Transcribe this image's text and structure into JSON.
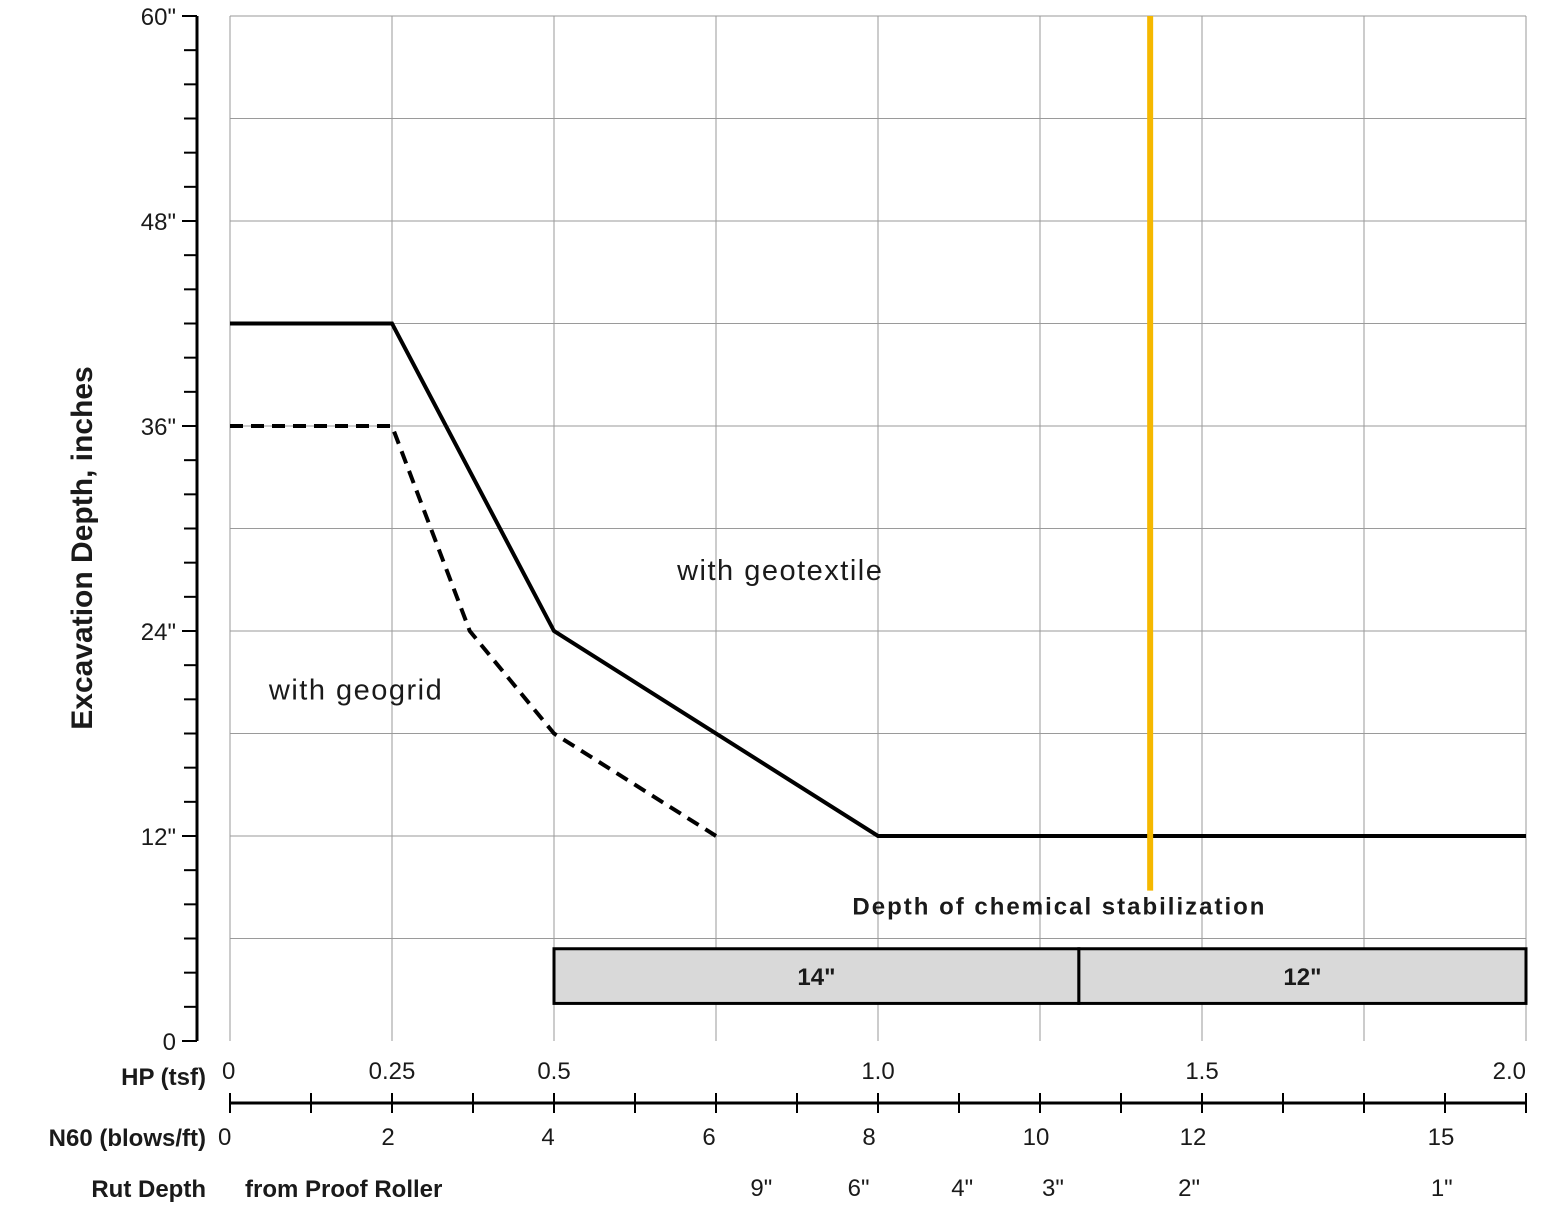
{
  "chart_data": {
    "type": "line",
    "ylabel": "Excavation Depth, inches",
    "y_tick_labels": [
      "0",
      "12\"",
      "24\"",
      "36\"",
      "48\"",
      "60\""
    ],
    "ylim": [
      0,
      60
    ],
    "grid": true,
    "x_axes": [
      {
        "title": "HP (tsf)",
        "ticks": [
          0,
          0.25,
          0.5,
          1.0,
          1.5,
          2.0
        ],
        "tick_labels": [
          "0",
          "0.25",
          "0.5",
          "1.0",
          "1.5",
          "2.0"
        ]
      },
      {
        "title": "N60 (blows/ft)",
        "ticks": [
          0,
          2,
          4,
          6,
          8,
          10,
          12,
          15
        ],
        "tick_labels": [
          "0",
          "2",
          "4",
          "6",
          "8",
          "10",
          "12",
          "15"
        ]
      },
      {
        "title": "Rut Depth",
        "subtitle": "from Proof Roller",
        "ticks": [
          0.82,
          0.97,
          1.13,
          1.27,
          1.48,
          1.87
        ],
        "tick_labels": [
          "9\"",
          "6\"",
          "4\"",
          "3\"",
          "2\"",
          "1\""
        ]
      }
    ],
    "xlim": [
      0,
      2.0
    ],
    "series": [
      {
        "name": "with geotextile",
        "style": "solid",
        "color": "#000000",
        "x": [
          0,
          0.25,
          0.5,
          1.0,
          2.0
        ],
        "y": [
          42,
          42,
          24,
          12,
          12
        ]
      },
      {
        "name": "with geogrid",
        "style": "dashed",
        "color": "#000000",
        "x": [
          0,
          0.25,
          0.37,
          0.5,
          0.75
        ],
        "y": [
          36,
          36,
          24,
          18,
          12
        ]
      }
    ],
    "reference_line": {
      "x": 1.42,
      "y_range": [
        8.8,
        60
      ],
      "color": "#F5B800"
    },
    "annotations": [
      {
        "text": "with geotextile",
        "x": 0.69,
        "y": 27
      },
      {
        "text": "with geogrid",
        "x": 0.06,
        "y": 20
      },
      {
        "text": "Depth of chemical stabilization",
        "x": 1.28,
        "y": 7.4
      }
    ],
    "stabilization_bars": [
      {
        "label": "14\"",
        "x_range": [
          0.5,
          1.31
        ],
        "y_range": [
          2.2,
          5.4
        ],
        "color": "#D9D9D9"
      },
      {
        "label": "12\"",
        "x_range": [
          1.31,
          2.0
        ],
        "y_range": [
          2.2,
          5.4
        ],
        "color": "#D9D9D9"
      }
    ]
  }
}
